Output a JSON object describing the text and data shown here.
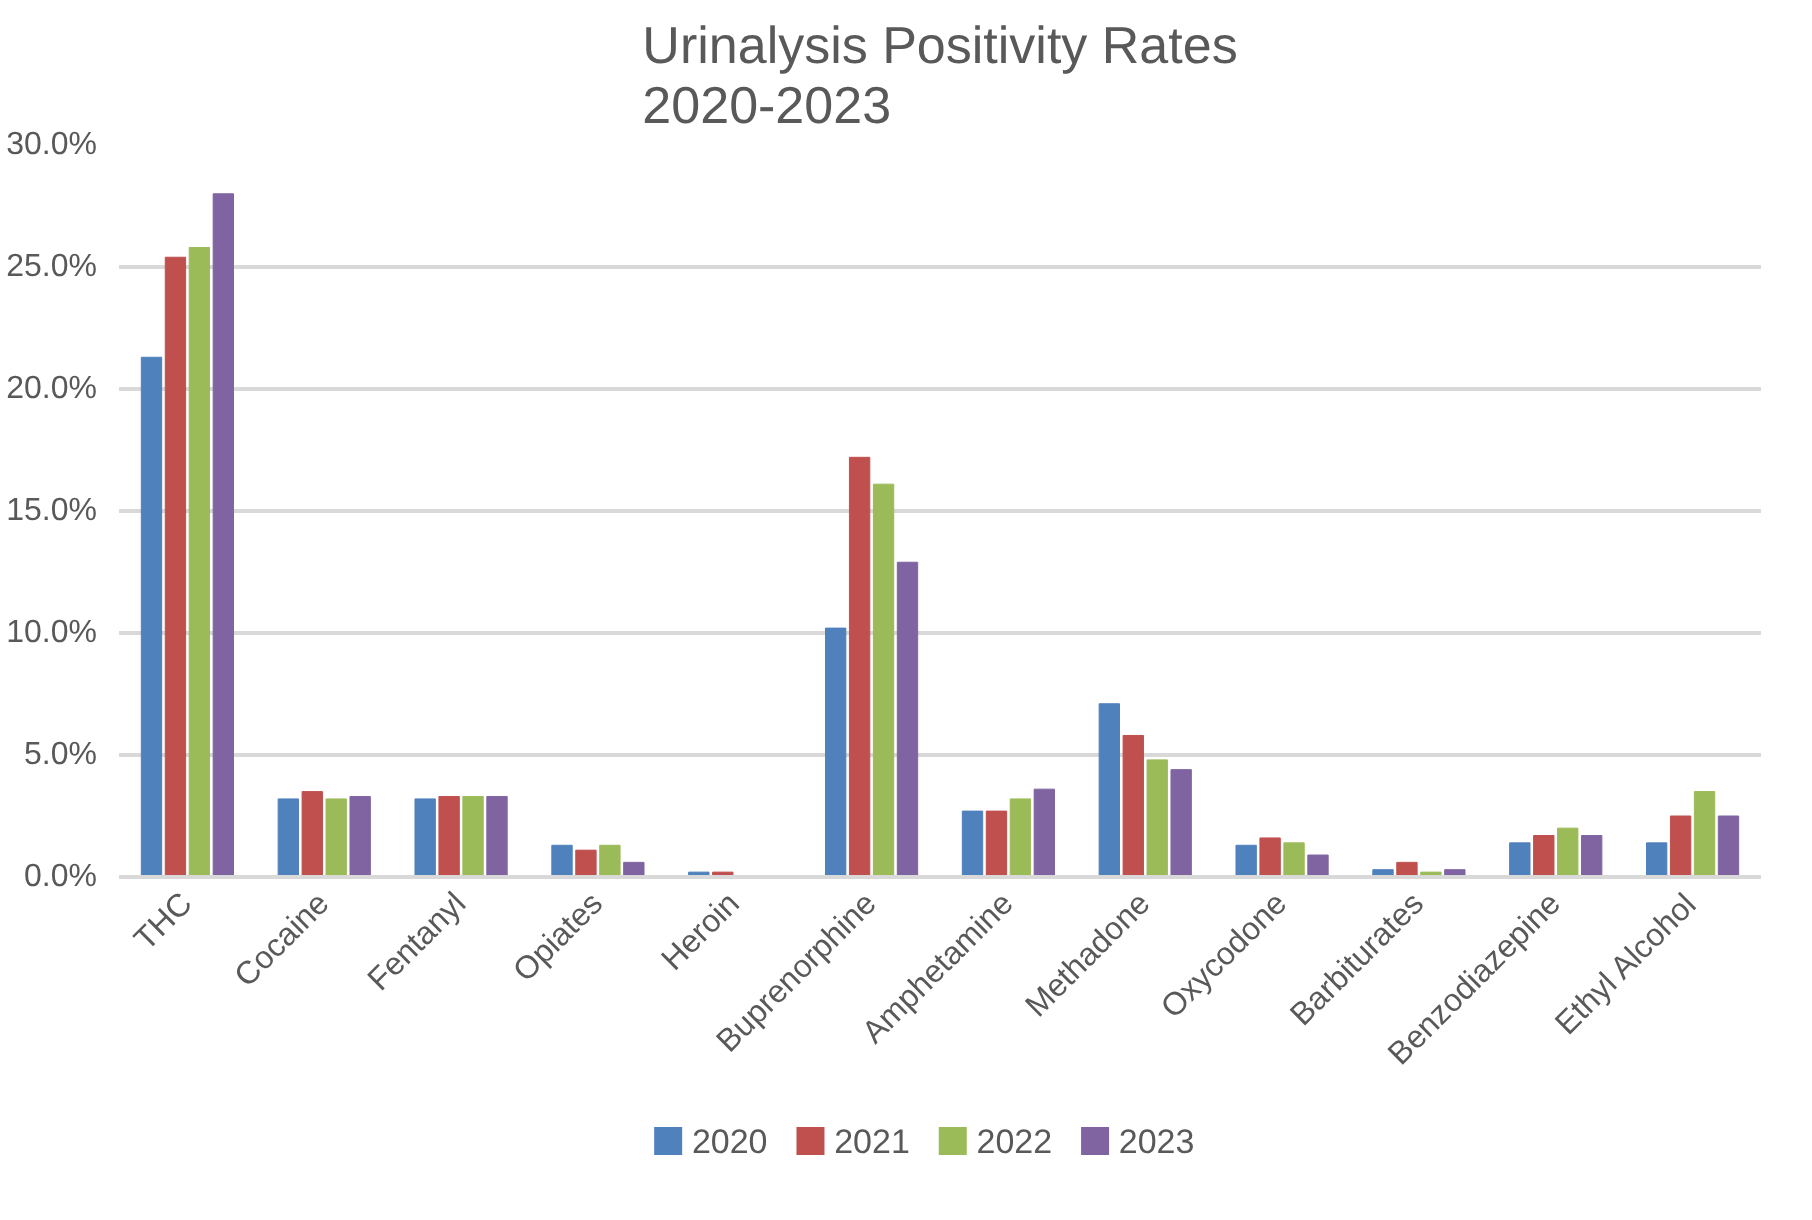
{
  "chart_data": {
    "type": "bar",
    "title": "Urinalysis Positivity Rates\n2020-2023",
    "categories": [
      "THC",
      "Cocaine",
      "Fentanyl",
      "Opiates",
      "Heroin",
      "Buprenorphine",
      "Amphetamine",
      "Methadone",
      "Oxycodone",
      "Barbiturates",
      "Benzodiazepine",
      "Ethyl Alcohol"
    ],
    "series": [
      {
        "name": "2020",
        "color": "#4f81bd",
        "values": [
          21.3,
          3.2,
          3.2,
          1.3,
          0.2,
          10.2,
          2.7,
          7.1,
          1.3,
          0.3,
          1.4,
          1.4
        ]
      },
      {
        "name": "2021",
        "color": "#c0504d",
        "values": [
          25.4,
          3.5,
          3.3,
          1.1,
          0.2,
          17.2,
          2.7,
          5.8,
          1.6,
          0.6,
          1.7,
          2.5
        ]
      },
      {
        "name": "2022",
        "color": "#9bbb59",
        "values": [
          25.8,
          3.2,
          3.3,
          1.3,
          0,
          16.1,
          3.2,
          4.8,
          1.4,
          0.2,
          2.0,
          3.5
        ]
      },
      {
        "name": "2023",
        "color": "#8064a2",
        "values": [
          28.0,
          3.3,
          3.3,
          0.6,
          0,
          12.9,
          3.6,
          4.4,
          0.9,
          0.3,
          1.7,
          2.5
        ]
      }
    ],
    "ylim": [
      0,
      30
    ],
    "yticks": [
      {
        "value": 0,
        "label": "0.0%"
      },
      {
        "value": 5,
        "label": "5.0%"
      },
      {
        "value": 10,
        "label": "10.0%"
      },
      {
        "value": 15,
        "label": "15.0%"
      },
      {
        "value": 20,
        "label": "20.0%"
      },
      {
        "value": 25,
        "label": "25.0%"
      },
      {
        "value": 30,
        "label": "30.0%"
      }
    ],
    "grid": "y",
    "legend": "bottom"
  }
}
